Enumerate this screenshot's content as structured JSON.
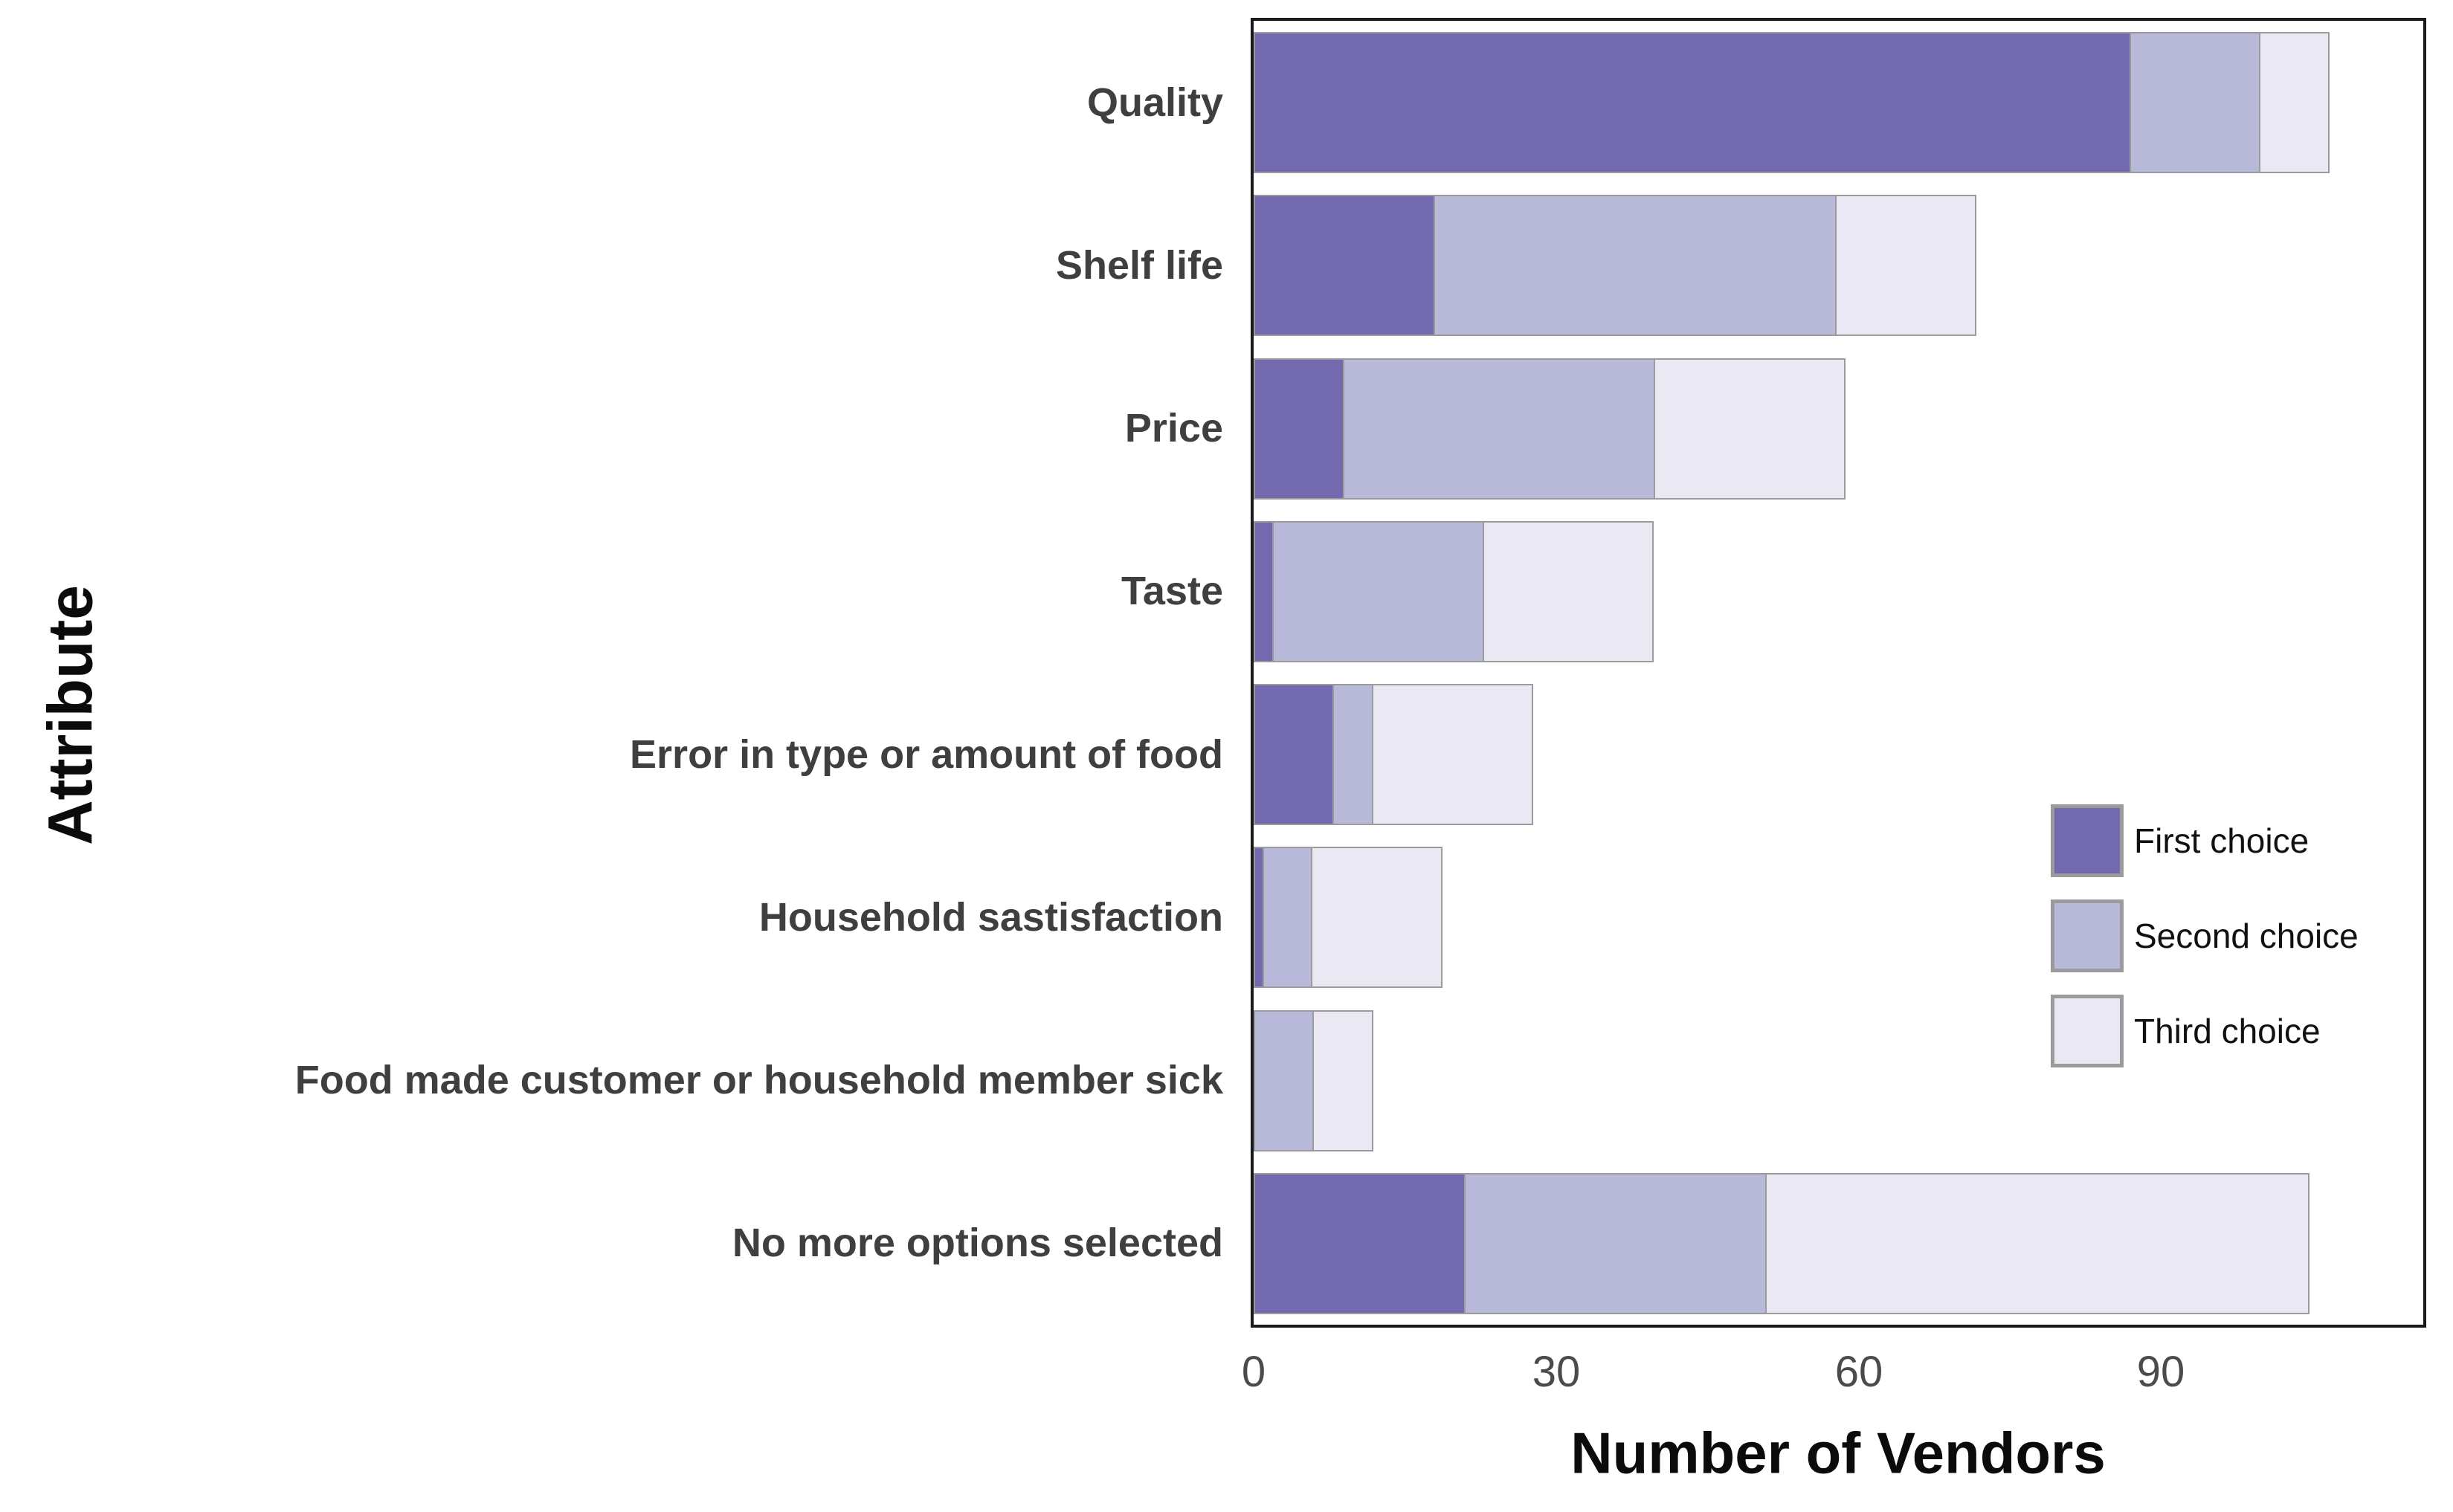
{
  "chart_data": {
    "type": "bar",
    "orientation": "horizontal",
    "stacked": true,
    "title": "",
    "xlabel": "Number of Vendors",
    "ylabel": "Attribute",
    "categories": [
      "Quality",
      "Shelf life",
      "Price",
      "Taste",
      "Error in type or amount of food",
      "Household sastisfaction",
      "Food made customer or household member sick",
      "No more options selected"
    ],
    "series": [
      {
        "name": "First choice",
        "color": "#7269ae",
        "values": [
          87,
          18,
          9,
          2,
          8,
          1,
          0,
          21
        ]
      },
      {
        "name": "Second choice",
        "color": "#b8b8d9",
        "values": [
          13,
          40,
          31,
          21,
          4,
          5,
          6,
          30
        ]
      },
      {
        "name": "Third choice",
        "color": "#eae9f3",
        "values": [
          7,
          14,
          19,
          17,
          16,
          13,
          6,
          54
        ]
      }
    ],
    "x_ticks": [
      0,
      30,
      60,
      90
    ],
    "xlim": [
      0,
      116
    ],
    "grid": false,
    "legend_position": "inside-right",
    "bar_border_color": "#9b9b9b",
    "panel_border_color": "#1a1a1a"
  },
  "axes": {
    "x_title": "Number of Vendors",
    "y_title": "Attribute"
  }
}
